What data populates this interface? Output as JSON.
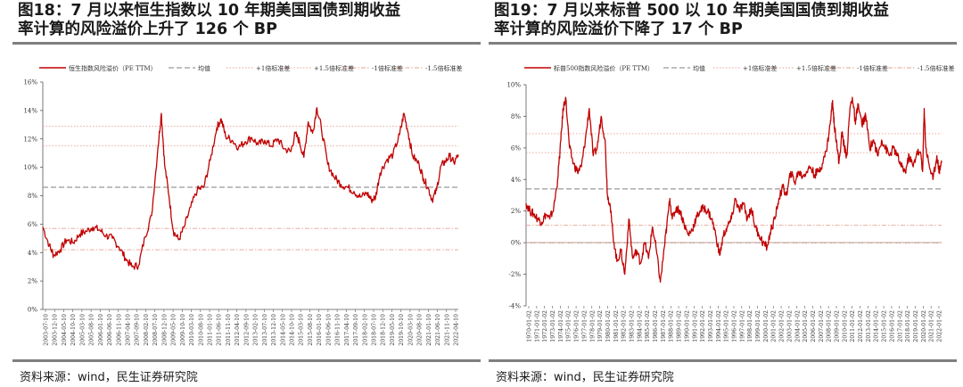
{
  "figures": [
    {
      "title_line1": "图18：7 月以来恒生指数以 10 年期美国国债到期收益",
      "title_line2": "率计算的风险溢价上升了 126 个 BP",
      "source": "资料来源：wind，民生证券研究院"
    },
    {
      "title_line1": "图19：7 月以来标普 500 以 10 年期美国国债到期收益",
      "title_line2": "率计算的风险溢价下降了 17 个 BP",
      "source": "资料来源：wind，民生证券研究院"
    }
  ],
  "chart_data": [
    {
      "type": "line",
      "title": "",
      "xlabel": "",
      "ylabel": "",
      "ylim": [
        0,
        16
      ],
      "y_ticks": [
        "0%",
        "2%",
        "4%",
        "6%",
        "8%",
        "10%",
        "12%",
        "14%",
        "16%"
      ],
      "grid": false,
      "legend_position": "top",
      "x_tick_labels": [
        "2003-07-10",
        "2003-12-10",
        "2004-05-10",
        "2004-10-10",
        "2005-03-10",
        "2005-08-10",
        "2006-01-10",
        "2006-06-10",
        "2006-11-10",
        "2007-04-10",
        "2007-09-10",
        "2008-02-10",
        "2008-07-10",
        "2008-12-10",
        "2009-05-10",
        "2009-10-10",
        "2010-03-10",
        "2010-08-10",
        "2011-01-10",
        "2011-06-10",
        "2011-11-10",
        "2012-04-10",
        "2012-09-10",
        "2013-02-10",
        "2013-07-10",
        "2013-12-10",
        "2014-05-10",
        "2014-10-10",
        "2015-03-10",
        "2015-08-10",
        "2016-01-10",
        "2016-06-10",
        "2016-11-10",
        "2017-04-10",
        "2017-09-10",
        "2018-02-10",
        "2018-07-10",
        "2018-12-10",
        "2019-05-10",
        "2019-10-10",
        "2020-03-10",
        "2020-08-10",
        "2021-01-10",
        "2021-06-10",
        "2021-11-10",
        "2022-04-10"
      ],
      "series": [
        {
          "name": "恒生指数风险溢价（PE TTM）",
          "style": "solid",
          "color": "#c00000",
          "x": [
            2003.5,
            2003.8,
            2004.0,
            2004.3,
            2004.6,
            2004.9,
            2005.2,
            2005.5,
            2005.8,
            2006.1,
            2006.4,
            2006.7,
            2007.0,
            2007.3,
            2007.6,
            2007.9,
            2008.2,
            2008.5,
            2008.8,
            2008.95,
            2009.1,
            2009.3,
            2009.5,
            2009.75,
            2010.0,
            2010.3,
            2010.6,
            2010.9,
            2011.2,
            2011.5,
            2011.7,
            2011.9,
            2012.2,
            2012.5,
            2012.8,
            2013.1,
            2013.4,
            2013.7,
            2014.0,
            2014.3,
            2014.6,
            2014.9,
            2015.1,
            2015.3,
            2015.5,
            2015.7,
            2015.9,
            2016.1,
            2016.3,
            2016.6,
            2016.9,
            2017.2,
            2017.5,
            2017.8,
            2018.1,
            2018.4,
            2018.6,
            2018.8,
            2019.0,
            2019.3,
            2019.6,
            2019.9,
            2020.1,
            2020.3,
            2020.5,
            2020.8,
            2021.0,
            2021.2,
            2021.4,
            2021.6,
            2021.8,
            2022.0,
            2022.2,
            2022.4,
            2022.6
          ],
          "values": [
            5.8,
            4.5,
            3.8,
            4.2,
            4.9,
            4.7,
            5.3,
            5.5,
            5.8,
            5.6,
            5.2,
            5.0,
            4.4,
            3.6,
            3.0,
            3.1,
            5.1,
            6.6,
            11.5,
            13.8,
            10.2,
            8.0,
            5.5,
            4.9,
            5.8,
            7.2,
            8.4,
            8.6,
            10.5,
            12.8,
            13.4,
            12.2,
            11.9,
            11.4,
            11.8,
            12.1,
            11.6,
            11.9,
            11.5,
            12.0,
            11.3,
            11.1,
            12.4,
            11.8,
            10.7,
            13.2,
            12.4,
            14.2,
            12.8,
            10.2,
            9.3,
            8.8,
            8.6,
            8.3,
            7.9,
            8.2,
            7.7,
            7.9,
            9.6,
            10.5,
            10.9,
            12.3,
            13.8,
            12.4,
            10.8,
            10.2,
            9.2,
            8.6,
            7.7,
            8.4,
            10.1,
            10.4,
            10.8,
            10.3,
            10.9
          ]
        },
        {
          "name": "均值",
          "style": "dash",
          "color": "#7f7f7f",
          "values": [
            8.6
          ]
        },
        {
          "name": "+1倍标准差",
          "style": "dot",
          "color": "#e6a090",
          "values": [
            11.5
          ]
        },
        {
          "name": "+1.5倍标准差",
          "style": "dot",
          "color": "#e6a090",
          "values": [
            12.9
          ]
        },
        {
          "name": "-1倍标准差",
          "style": "dashdot",
          "color": "#e6a090",
          "values": [
            5.7
          ]
        },
        {
          "name": "-1.5倍标准差",
          "style": "dashdot",
          "color": "#e6a090",
          "values": [
            4.2
          ]
        }
      ]
    },
    {
      "type": "line",
      "title": "",
      "xlabel": "",
      "ylabel": "",
      "ylim": [
        -4,
        10
      ],
      "y_ticks": [
        "-4%",
        "-2%",
        "0%",
        "2%",
        "4%",
        "6%",
        "8%",
        "10%"
      ],
      "grid": false,
      "legend_position": "top",
      "x_tick_labels": [
        "1970-01-02",
        "1971-01-02",
        "1972-01-02",
        "1973-01-02",
        "1974-01-02",
        "1975-01-02",
        "1976-01-02",
        "1977-01-02",
        "1978-01-02",
        "1979-01-02",
        "1980-01-02",
        "1981-01-02",
        "1982-01-02",
        "1983-01-02",
        "1984-01-02",
        "1985-01-02",
        "1986-01-02",
        "1987-01-02",
        "1988-01-02",
        "1989-01-02",
        "1990-01-02",
        "1991-01-02",
        "1992-01-02",
        "1993-01-02",
        "1994-01-02",
        "1995-01-02",
        "1996-01-02",
        "1997-01-02",
        "1998-01-02",
        "1999-01-02",
        "2000-01-02",
        "2001-01-02",
        "2002-01-02",
        "2003-01-02",
        "2004-01-02",
        "2005-01-02",
        "2006-01-02",
        "2007-01-02",
        "2008-01-02",
        "2009-01-02",
        "2010-01-02",
        "2011-01-02",
        "2012-01-02",
        "2013-01-02",
        "2014-01-02",
        "2015-01-02",
        "2016-01-02",
        "2017-01-02",
        "2018-01-02",
        "2019-01-02",
        "2020-01-02",
        "2021-01-02",
        "2022-01-02"
      ],
      "series": [
        {
          "name": "标普500指数风险溢价（PE TTM）",
          "style": "solid",
          "color": "#c00000",
          "x": [
            1970.0,
            1970.5,
            1971.0,
            1971.5,
            1972.0,
            1972.5,
            1973.0,
            1973.5,
            1974.0,
            1974.4,
            1974.7,
            1975.0,
            1975.5,
            1976.0,
            1976.5,
            1977.0,
            1977.5,
            1978.0,
            1978.5,
            1979.0,
            1979.5,
            1980.0,
            1980.3,
            1980.6,
            1981.0,
            1981.5,
            1982.0,
            1982.5,
            1983.0,
            1983.5,
            1984.0,
            1984.5,
            1985.0,
            1985.5,
            1986.0,
            1986.5,
            1987.0,
            1987.5,
            1987.8,
            1988.2,
            1988.5,
            1989.0,
            1989.5,
            1990.0,
            1990.5,
            1991.0,
            1991.5,
            1992.0,
            1992.5,
            1993.0,
            1993.5,
            1994.0,
            1994.5,
            1995.0,
            1995.5,
            1996.0,
            1996.5,
            1997.0,
            1997.5,
            1998.0,
            1998.5,
            1999.0,
            1999.5,
            2000.0,
            2000.5,
            2001.0,
            2001.5,
            2002.0,
            2002.5,
            2003.0,
            2003.5,
            2004.0,
            2004.5,
            2005.0,
            2005.5,
            2006.0,
            2006.5,
            2007.0,
            2007.5,
            2008.0,
            2008.5,
            2008.8,
            2009.0,
            2009.3,
            2009.6,
            2010.0,
            2010.3,
            2010.6,
            2011.0,
            2011.3,
            2011.7,
            2012.0,
            2012.5,
            2013.0,
            2013.5,
            2014.0,
            2014.5,
            2015.0,
            2015.5,
            2016.0,
            2016.5,
            2017.0,
            2017.5,
            2018.0,
            2018.5,
            2019.0,
            2019.5,
            2020.0,
            2020.2,
            2020.4,
            2020.6,
            2021.0,
            2021.5,
            2022.0,
            2022.3,
            2022.6
          ],
          "values": [
            2.5,
            2.0,
            1.8,
            1.5,
            1.3,
            1.8,
            1.5,
            2.2,
            4.0,
            6.5,
            8.5,
            9.2,
            6.0,
            5.0,
            4.5,
            4.8,
            6.5,
            8.5,
            5.5,
            6.0,
            8.0,
            6.5,
            3.0,
            2.5,
            0.5,
            -1.2,
            -0.5,
            -2.0,
            1.5,
            -1.0,
            -0.5,
            -1.3,
            0.0,
            -1.0,
            1.0,
            -0.5,
            -2.5,
            -0.3,
            1.0,
            2.8,
            1.5,
            2.2,
            2.0,
            1.2,
            0.5,
            0.8,
            1.5,
            2.0,
            2.2,
            2.0,
            1.5,
            0.5,
            -0.8,
            0.5,
            1.0,
            1.5,
            2.8,
            2.0,
            2.5,
            1.5,
            2.2,
            1.0,
            0.5,
            0.0,
            -0.3,
            0.8,
            1.5,
            2.8,
            3.5,
            3.0,
            4.5,
            3.8,
            4.5,
            4.2,
            4.5,
            4.8,
            4.3,
            4.5,
            5.0,
            5.8,
            7.5,
            9.0,
            7.5,
            6.5,
            5.0,
            7.0,
            6.0,
            5.5,
            8.5,
            9.2,
            7.5,
            8.8,
            7.5,
            8.0,
            6.0,
            6.5,
            5.5,
            6.5,
            6.0,
            5.5,
            6.0,
            5.5,
            4.8,
            4.5,
            5.5,
            4.8,
            5.8,
            5.5,
            4.5,
            8.5,
            6.0,
            5.0,
            4.0,
            5.5,
            4.5,
            5.2
          ]
        },
        {
          "name": "均值",
          "style": "dash",
          "color": "#7f7f7f",
          "values": [
            3.4
          ]
        },
        {
          "name": "+1倍标准差",
          "style": "dot",
          "color": "#e6a090",
          "values": [
            5.7
          ]
        },
        {
          "name": "+1.5倍标准差",
          "style": "dot",
          "color": "#e6a090",
          "values": [
            6.9
          ]
        },
        {
          "name": "-1倍标准差",
          "style": "dashdot",
          "color": "#e6a090",
          "values": [
            1.1
          ]
        },
        {
          "name": "-1.5倍标准差",
          "style": "dashdot",
          "color": "#e6a090",
          "values": [
            0.0
          ]
        }
      ]
    }
  ]
}
